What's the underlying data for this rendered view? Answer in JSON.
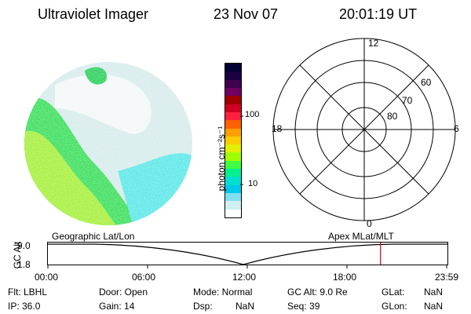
{
  "header": {
    "instrument": "Ultraviolet Imager",
    "date": "23 Nov 07",
    "time": "20:01:19 UT"
  },
  "colorbar": {
    "label": "photon cm⁻²s⁻¹",
    "ticks": [
      "100",
      "10"
    ],
    "colors": [
      "#000033",
      "#1a0040",
      "#400050",
      "#700060",
      "#a00000",
      "#d00020",
      "#ff2040",
      "#ff6000",
      "#ffa000",
      "#ffcc00",
      "#e0f000",
      "#a0ff00",
      "#40ff40",
      "#00f090",
      "#00e0d0",
      "#00c8e8",
      "#80e0f0",
      "#d0f0f0",
      "#ffffff"
    ]
  },
  "polar_plot": {
    "mlt_labels": {
      "top": "12",
      "bottom": "0",
      "left": "18",
      "right": "6"
    },
    "lat_labels": [
      "60",
      "70",
      "80"
    ]
  },
  "timeline": {
    "left_label": "Geographic Lat/Lon",
    "right_label": "Apex MLat/MLT",
    "y_axis_title": "GC Alt",
    "y_ticks": [
      "9.0",
      "1.8"
    ],
    "x_ticks": [
      "00:00",
      "06:00",
      "12:00",
      "18:00",
      "23:59"
    ],
    "marker_color": "#cc0000",
    "marker_time_hours": 20.02
  },
  "footer": {
    "flt": "Flt: LBHL",
    "ip": "IP: 36.0",
    "door": "Door: Open",
    "gain": "Gain: 14",
    "mode": "Mode: Normal",
    "dsp": "Dsp:",
    "dsp_val": "NaN",
    "gcalt": "GC Alt: 9.0 Re",
    "seq": "Seq: 39",
    "glat": "GLat:",
    "glat_val": "NaN",
    "glon": "GLon:",
    "glon_val": "NaN"
  }
}
